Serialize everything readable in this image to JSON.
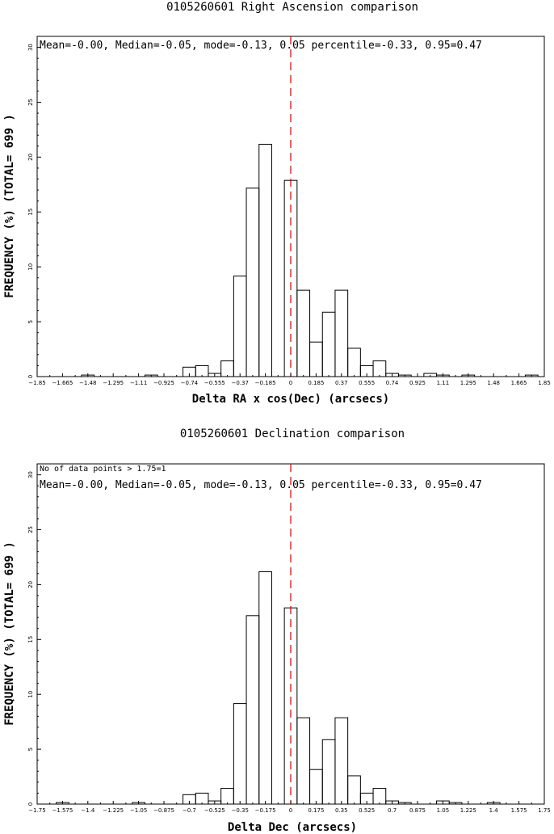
{
  "chart_data": [
    {
      "type": "bar",
      "title": "0105260601 Right Ascension comparison",
      "xlabel": "Delta RA x cos(Dec) (arcsecs)",
      "ylabel": "FREQUENCY (%) (TOTAL= 699 )",
      "stats_text": "Mean=-0.00, Median=-0.05, mode=-0.13, 0.05 percentile=-0.33, 0.95=0.47",
      "extra_note": "",
      "xlim": [
        -1.85,
        1.85
      ],
      "ylim": [
        0,
        31
      ],
      "bin_width": 0.0925,
      "xtick_labels": [
        "-1.85",
        "-1.665",
        "-1.48",
        "-1.295",
        "-1.11",
        "-0.925",
        "-0.74",
        "-0.555",
        "-0.37",
        "-0.185",
        "0",
        "0.185",
        "0.37",
        "0.555",
        "0.74",
        "0.925",
        "1.11",
        "1.295",
        "1.48",
        "1.665",
        "1.85"
      ],
      "ytick_labels": [
        "0",
        "5",
        "10",
        "15",
        "20",
        "25",
        "30"
      ],
      "vline_x": 0,
      "bins": [
        {
          "x": -1.7575,
          "value": 0.0
        },
        {
          "x": -1.665,
          "value": 0.0
        },
        {
          "x": -1.5725,
          "value": 0.0
        },
        {
          "x": -1.48,
          "value": 0.14
        },
        {
          "x": -1.3875,
          "value": 0.0
        },
        {
          "x": -1.295,
          "value": 0.0
        },
        {
          "x": -1.2025,
          "value": 0.0
        },
        {
          "x": -1.11,
          "value": 0.0
        },
        {
          "x": -1.0175,
          "value": 0.14
        },
        {
          "x": -0.925,
          "value": 0.0
        },
        {
          "x": -0.8325,
          "value": 0.0
        },
        {
          "x": -0.74,
          "value": 0.86
        },
        {
          "x": -0.6475,
          "value": 1.0
        },
        {
          "x": -0.555,
          "value": 0.29
        },
        {
          "x": -0.4625,
          "value": 1.43
        },
        {
          "x": -0.37,
          "value": 9.16
        },
        {
          "x": -0.2775,
          "value": 17.17
        },
        {
          "x": -0.185,
          "value": 21.17
        },
        {
          "x": -0.0925,
          "value": 0.0
        },
        {
          "x": 0.0,
          "value": 17.88
        },
        {
          "x": 0.0925,
          "value": 7.87
        },
        {
          "x": 0.185,
          "value": 3.15
        },
        {
          "x": 0.2775,
          "value": 5.87
        },
        {
          "x": 0.37,
          "value": 7.87
        },
        {
          "x": 0.4625,
          "value": 2.58
        },
        {
          "x": 0.555,
          "value": 1.0
        },
        {
          "x": 0.6475,
          "value": 1.43
        },
        {
          "x": 0.74,
          "value": 0.29
        },
        {
          "x": 0.8325,
          "value": 0.14
        },
        {
          "x": 0.925,
          "value": 0.0
        },
        {
          "x": 1.0175,
          "value": 0.29
        },
        {
          "x": 1.11,
          "value": 0.14
        },
        {
          "x": 1.2025,
          "value": 0.0
        },
        {
          "x": 1.295,
          "value": 0.14
        },
        {
          "x": 1.3875,
          "value": 0.0
        },
        {
          "x": 1.48,
          "value": 0.0
        },
        {
          "x": 1.5725,
          "value": 0.0
        },
        {
          "x": 1.665,
          "value": 0.0
        },
        {
          "x": 1.7575,
          "value": 0.14
        }
      ]
    },
    {
      "type": "bar",
      "title": "0105260601 Declination comparison",
      "xlabel": "Delta Dec (arcsecs)",
      "ylabel": "FREQUENCY (%) (TOTAL= 699 )",
      "stats_text": "Mean=-0.00, Median=-0.05, mode=-0.13, 0.05 percentile=-0.33, 0.95=0.47",
      "extra_note": "No of data points > 1.75=1",
      "xlim": [
        -1.75,
        1.75
      ],
      "ylim": [
        0,
        31
      ],
      "bin_width": 0.0875,
      "xtick_labels": [
        "-1.75",
        "-1.575",
        "-1.4",
        "-1.225",
        "-1.05",
        "-0.875",
        "-0.7",
        "-0.525",
        "-0.35",
        "-0.175",
        "0",
        "0.175",
        "0.35",
        "0.525",
        "0.7",
        "0.875",
        "1.05",
        "1.225",
        "1.4",
        "1.575",
        "1.75"
      ],
      "ytick_labels": [
        "0",
        "5",
        "10",
        "15",
        "20",
        "25",
        "30"
      ],
      "vline_x": 0,
      "bins": [
        {
          "x": -1.75,
          "value": 0.0
        },
        {
          "x": -1.6625,
          "value": 0.0
        },
        {
          "x": -1.575,
          "value": 0.14
        },
        {
          "x": -1.4875,
          "value": 0.0
        },
        {
          "x": -1.4,
          "value": 0.0
        },
        {
          "x": -1.3125,
          "value": 0.0
        },
        {
          "x": -1.225,
          "value": 0.0
        },
        {
          "x": -1.1375,
          "value": 0.0
        },
        {
          "x": -1.05,
          "value": 0.14
        },
        {
          "x": -0.9625,
          "value": 0.0
        },
        {
          "x": -0.875,
          "value": 0.0
        },
        {
          "x": -0.7875,
          "value": 0.0
        },
        {
          "x": -0.7,
          "value": 0.86
        },
        {
          "x": -0.6125,
          "value": 1.0
        },
        {
          "x": -0.525,
          "value": 0.29
        },
        {
          "x": -0.4375,
          "value": 1.43
        },
        {
          "x": -0.35,
          "value": 9.16
        },
        {
          "x": -0.2625,
          "value": 17.17
        },
        {
          "x": -0.175,
          "value": 21.17
        },
        {
          "x": -0.0875,
          "value": 0.0
        },
        {
          "x": 0.0,
          "value": 17.88
        },
        {
          "x": 0.0875,
          "value": 7.87
        },
        {
          "x": 0.175,
          "value": 3.15
        },
        {
          "x": 0.2625,
          "value": 5.87
        },
        {
          "x": 0.35,
          "value": 7.87
        },
        {
          "x": 0.4375,
          "value": 2.58
        },
        {
          "x": 0.525,
          "value": 1.0
        },
        {
          "x": 0.6125,
          "value": 1.43
        },
        {
          "x": 0.7,
          "value": 0.29
        },
        {
          "x": 0.7875,
          "value": 0.14
        },
        {
          "x": 0.875,
          "value": 0.0
        },
        {
          "x": 0.9625,
          "value": 0.0
        },
        {
          "x": 1.05,
          "value": 0.29
        },
        {
          "x": 1.1375,
          "value": 0.14
        },
        {
          "x": 1.225,
          "value": 0.0
        },
        {
          "x": 1.3125,
          "value": 0.0
        },
        {
          "x": 1.4,
          "value": 0.14
        },
        {
          "x": 1.4875,
          "value": 0.0
        },
        {
          "x": 1.575,
          "value": 0.0
        },
        {
          "x": 1.6625,
          "value": 0.0
        }
      ]
    }
  ]
}
